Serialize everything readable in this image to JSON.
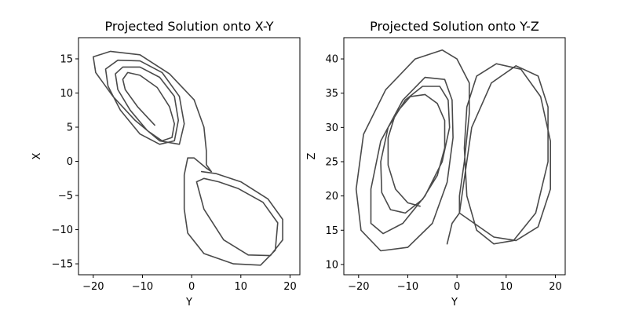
{
  "chart_data": [
    {
      "type": "line",
      "title": "Projected Solution onto X-Y",
      "xlabel": "Y",
      "ylabel": "X",
      "xlim": [
        -23,
        22
      ],
      "ylim": [
        -16.6,
        18.1
      ],
      "xticks": [
        -20,
        -10,
        0,
        10,
        20
      ],
      "yticks": [
        -15,
        -10,
        -5,
        0,
        5,
        10,
        15
      ],
      "grid": false,
      "series": [
        {
          "color": "#4a4a4a",
          "x": [
            -7.5,
            -11.0,
            -13.5,
            -14.0,
            -13.0,
            -10.5,
            -7.0,
            -4.5,
            -3.5,
            -4.0,
            -6.0,
            -9.0,
            -12.5,
            -15.0,
            -15.5,
            -14.0,
            -10.5,
            -6.5,
            -3.5,
            -2.7,
            -3.5,
            -6.5,
            -10.5,
            -14.5,
            -17.0,
            -17.5,
            -15.0,
            -10.5,
            -6.0,
            -2.5,
            -1.5,
            -2.5,
            -6.5,
            -11.5,
            -16.0,
            -19.5,
            -20.0,
            -16.5,
            -10.5,
            -4.5,
            0.5,
            2.5,
            3.0,
            3.0,
            4.0,
            3.0,
            0.5,
            -0.8,
            -1.5,
            -1.5,
            -0.8,
            2.5,
            8.5,
            14.0,
            17.0,
            17.5,
            14.5,
            9.5,
            5.5,
            2.5,
            1.0,
            2.5,
            6.5,
            11.5,
            16.0,
            18.5,
            18.5,
            15.5,
            10.0,
            5.0,
            2.0
          ],
          "y": [
            5.3,
            8.0,
            10.5,
            12.0,
            13.0,
            12.6,
            10.8,
            8.0,
            5.5,
            3.5,
            3.0,
            4.5,
            7.5,
            10.5,
            12.8,
            13.8,
            13.8,
            12.3,
            9.5,
            6.0,
            3.0,
            2.5,
            4.0,
            7.5,
            11.0,
            13.5,
            14.8,
            14.7,
            13.0,
            9.5,
            5.5,
            2.5,
            3.0,
            6.0,
            9.5,
            13.0,
            15.3,
            16.1,
            15.6,
            12.8,
            9.0,
            5.0,
            1.5,
            -0.5,
            -1.5,
            -1.0,
            0.5,
            0.5,
            -2.0,
            -7.0,
            -10.5,
            -13.5,
            -15.0,
            -15.2,
            -13.0,
            -9.0,
            -6.0,
            -4.0,
            -3.0,
            -2.5,
            -3.0,
            -7.0,
            -11.5,
            -13.7,
            -13.8,
            -11.5,
            -8.5,
            -5.5,
            -3.0,
            -1.8,
            -1.5
          ]
        }
      ]
    },
    {
      "type": "line",
      "title": "Projected Solution onto Y-Z",
      "xlabel": "Y",
      "ylabel": "Z",
      "xlim": [
        -23,
        22
      ],
      "ylim": [
        8.5,
        43.1
      ],
      "xticks": [
        -20,
        -10,
        0,
        10,
        20
      ],
      "yticks": [
        10,
        15,
        20,
        25,
        30,
        35,
        40
      ],
      "grid": false,
      "series": [
        {
          "color": "#4a4a4a",
          "x": [
            -7.5,
            -10.0,
            -12.5,
            -14.0,
            -14.0,
            -12.5,
            -9.5,
            -6.5,
            -4.0,
            -2.5,
            -2.5,
            -4.0,
            -7.0,
            -10.5,
            -13.5,
            -15.3,
            -15.5,
            -14.0,
            -10.5,
            -7.0,
            -3.5,
            -1.8,
            -1.5,
            -3.0,
            -6.5,
            -11.0,
            -15.0,
            -17.5,
            -17.5,
            -15.5,
            -11.0,
            -6.5,
            -2.5,
            -1.0,
            -0.8,
            -2.0,
            -5.0,
            -10.0,
            -15.5,
            -19.5,
            -20.5,
            -19.0,
            -14.5,
            -8.5,
            -3.0,
            0.0,
            2.5,
            2.5,
            1.5,
            0.5,
            0.5,
            1.0,
            3.0,
            7.0,
            12.0,
            16.5,
            18.5,
            18.5,
            16.0,
            11.5,
            7.5,
            4.0,
            2.0,
            1.5,
            2.0,
            4.0,
            8.0,
            13.0,
            17.0,
            19.0,
            19.0,
            16.5,
            12.0,
            7.5,
            3.5,
            0.5,
            -1.0,
            -2.0
          ],
          "y": [
            18.5,
            19.0,
            21.0,
            24.5,
            28.5,
            32.0,
            34.5,
            34.8,
            33.5,
            31.0,
            27.0,
            23.0,
            19.5,
            17.5,
            18.0,
            20.5,
            25.0,
            30.0,
            34.0,
            36.0,
            36.0,
            34.0,
            30.0,
            25.0,
            20.0,
            16.0,
            14.5,
            16.0,
            21.0,
            28.0,
            34.0,
            37.3,
            37.0,
            34.0,
            28.5,
            22.0,
            16.0,
            12.5,
            12.0,
            15.0,
            21.0,
            29.0,
            35.5,
            40.0,
            41.3,
            40.0,
            36.5,
            32.0,
            25.0,
            20.0,
            17.5,
            20.0,
            30.0,
            36.5,
            39.0,
            37.5,
            33.0,
            25.0,
            17.5,
            13.5,
            13.0,
            15.0,
            20.0,
            27.0,
            33.0,
            37.5,
            39.3,
            38.5,
            34.5,
            28.0,
            21.0,
            15.5,
            13.5,
            14.0,
            16.0,
            17.5,
            16.0,
            13.0
          ]
        }
      ]
    }
  ]
}
